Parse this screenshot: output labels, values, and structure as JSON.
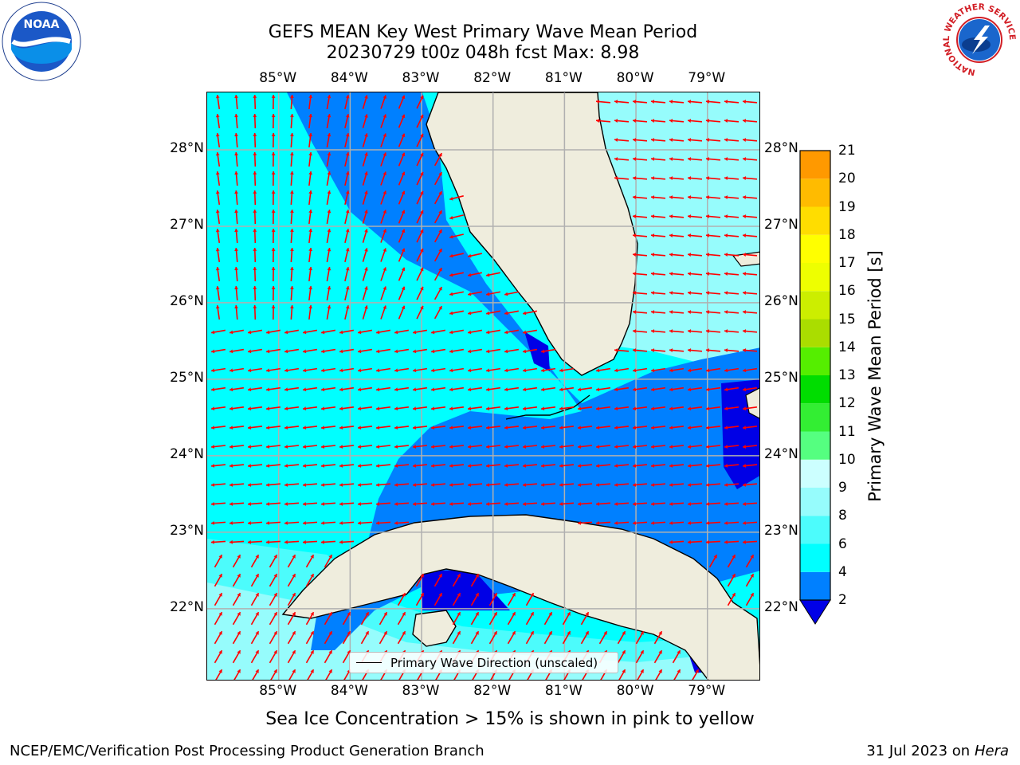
{
  "title": {
    "line1": "GEFS MEAN Key West Primary Wave Mean Period",
    "line2": "20230729 t00z 048h fcst   Max: 8.98"
  },
  "logos": {
    "left": {
      "icon": "noaa-logo-icon",
      "text": "NOAA"
    },
    "right": {
      "icon": "nws-logo-icon",
      "ring_text": "NATIONAL WEATHER SERVICE"
    }
  },
  "map": {
    "lon_labels": [
      "85°W",
      "84°W",
      "83°W",
      "82°W",
      "81°W",
      "80°W",
      "79°W"
    ],
    "lat_labels": [
      "28°N",
      "27°N",
      "26°N",
      "25°N",
      "24°N",
      "23°N",
      "22°N"
    ],
    "lon_range": [
      -86.0,
      -78.25
    ],
    "lat_range": [
      21.05,
      28.75
    ],
    "gridlines": true,
    "land_color": "#efeddd",
    "arrow_color": "#ff0000"
  },
  "legend": {
    "label": "Primary Wave Direction (unscaled)",
    "placement": "lower-center"
  },
  "colorbar": {
    "label": "Primary Wave Mean Period [s]",
    "ticks": [
      "21",
      "20",
      "19",
      "18",
      "17",
      "16",
      "15",
      "14",
      "13",
      "12",
      "11",
      "10",
      "9",
      "8",
      "6",
      "4",
      "2"
    ],
    "colors": [
      "#0000e6",
      "#0080ff",
      "#00ffff",
      "#4cfcfc",
      "#96fcfc",
      "#ccffff",
      "#55ff80",
      "#33ee33",
      "#00dd00",
      "#55ee00",
      "#aadd00",
      "#ccee00",
      "#eeff00",
      "#ffff00",
      "#ffdd00",
      "#ffbb00",
      "#ff9900",
      "#ff7700",
      "#ff5500",
      "#ff2200",
      "#ff0000"
    ]
  },
  "footer": {
    "note": "Sea Ice Concentration > 15% is shown in pink to yellow",
    "credit_left": "NCEP/EMC/Verification Post Processing Product Generation Branch",
    "credit_right_prefix": "31 Jul 2023 on ",
    "credit_right_host": "Hera"
  }
}
